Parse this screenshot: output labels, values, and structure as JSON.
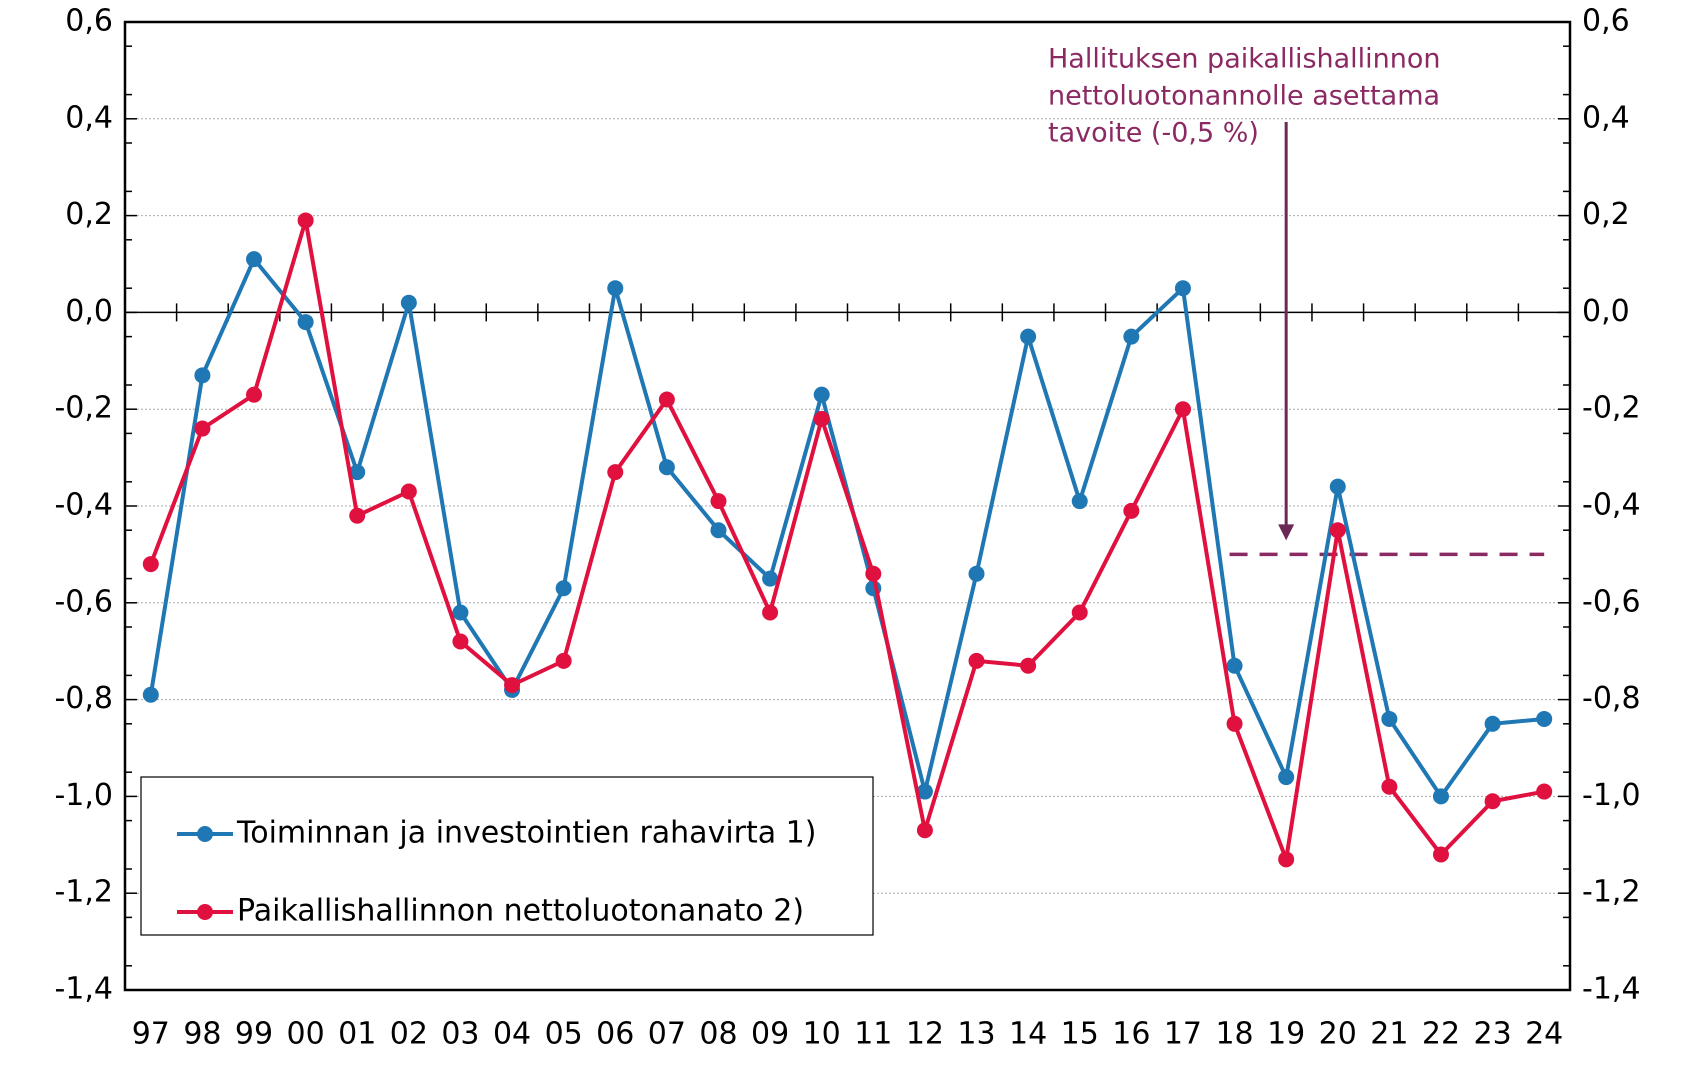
{
  "chart_data": {
    "type": "line",
    "categories": [
      "97",
      "98",
      "99",
      "00",
      "01",
      "02",
      "03",
      "04",
      "05",
      "06",
      "07",
      "08",
      "09",
      "10",
      "11",
      "12",
      "13",
      "14",
      "15",
      "16",
      "17",
      "18",
      "19",
      "20",
      "21",
      "22",
      "23",
      "24"
    ],
    "series": [
      {
        "name": "Toiminnan ja investointien rahavirta 1)",
        "color": "#1f77b4",
        "values": [
          -0.79,
          -0.13,
          0.11,
          -0.02,
          -0.33,
          0.02,
          -0.62,
          -0.78,
          -0.57,
          0.05,
          -0.32,
          -0.45,
          -0.55,
          -0.17,
          -0.57,
          -0.99,
          -0.54,
          -0.05,
          -0.39,
          -0.05,
          0.05,
          -0.73,
          -0.96,
          -0.36,
          -0.84,
          -1.0,
          -0.85,
          -0.84
        ]
      },
      {
        "name": "Paikallishallinnon nettoluotonanato 2)",
        "color": "#e0103f",
        "values": [
          -0.52,
          -0.24,
          -0.17,
          0.19,
          -0.42,
          -0.37,
          -0.68,
          -0.77,
          -0.72,
          -0.33,
          -0.18,
          -0.39,
          -0.62,
          -0.22,
          -0.54,
          -1.07,
          -0.72,
          -0.73,
          -0.62,
          -0.41,
          -0.2,
          -0.85,
          -1.13,
          -0.45,
          -0.98,
          -1.12,
          -1.01,
          -0.99
        ]
      }
    ],
    "ylim": [
      -1.4,
      0.6
    ],
    "yticks": [
      {
        "value": 0.6,
        "label": "0,6"
      },
      {
        "value": 0.4,
        "label": "0,4"
      },
      {
        "value": 0.2,
        "label": "0,2"
      },
      {
        "value": 0,
        "label": "0,0"
      },
      {
        "value": -0.2,
        "label": "-0,2"
      },
      {
        "value": -0.4,
        "label": "-0,4"
      },
      {
        "value": -0.6,
        "label": "-0,6"
      },
      {
        "value": -0.8,
        "label": "-0,8"
      },
      {
        "value": -1.0,
        "label": "-1,0"
      },
      {
        "value": -1.2,
        "label": "-1,2"
      },
      {
        "value": -1.4,
        "label": "-1,4"
      }
    ],
    "y2lim": [
      -1.4,
      0.6
    ],
    "y2ticks": [
      {
        "value": 0.6,
        "label": "0,6"
      },
      {
        "value": 0.4,
        "label": "0,4"
      },
      {
        "value": 0.2,
        "label": "0,2"
      },
      {
        "value": 0,
        "label": "0,0"
      },
      {
        "value": -0.2,
        "label": "-0,2"
      },
      {
        "value": -0.4,
        "label": "-0,4"
      },
      {
        "value": -0.6,
        "label": "-0,6"
      },
      {
        "value": -0.8,
        "label": "-0,8"
      },
      {
        "value": -1.0,
        "label": "-1,0"
      },
      {
        "value": -1.2,
        "label": "-1,2"
      },
      {
        "value": -1.4,
        "label": "-1,4"
      }
    ],
    "grid": true,
    "legend": "lower left",
    "annotation": {
      "lines": [
        "Hallituksen paikallishallinnon",
        "nettoluotonannolle asettama",
        "tavoite (-0,5 %)"
      ],
      "target": -0.5,
      "color": "#8b2a62"
    }
  }
}
